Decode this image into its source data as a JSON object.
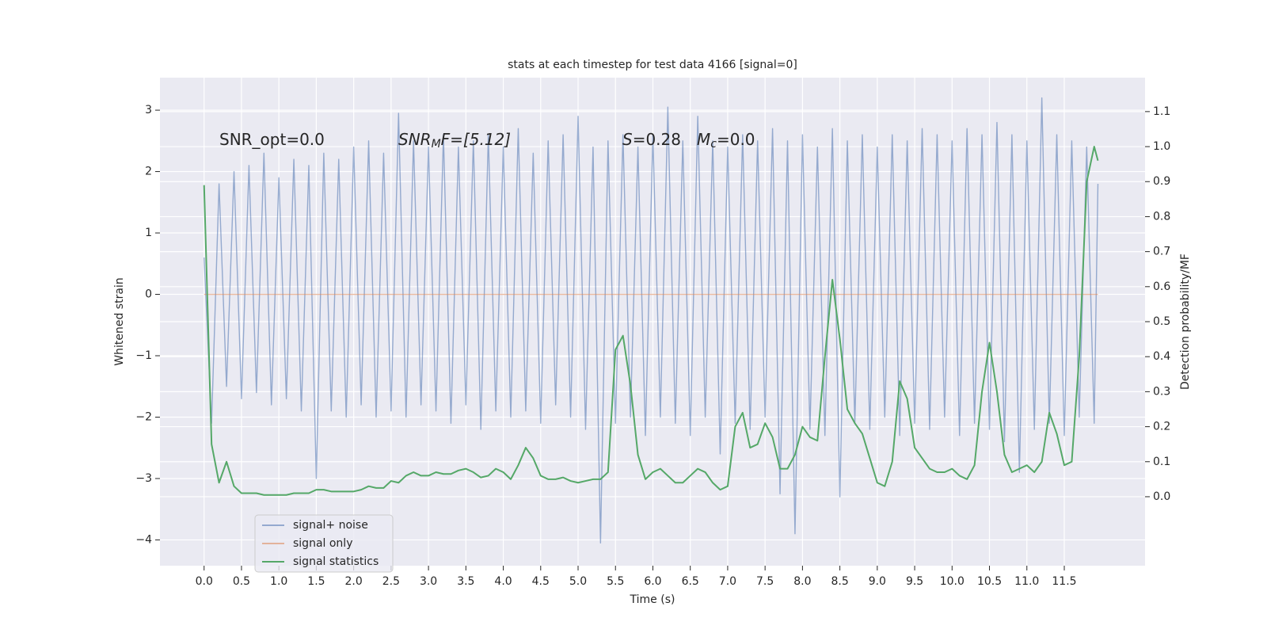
{
  "chart_data": {
    "type": "line",
    "title": "stats at each timestep for test data 4166 [signal=0]",
    "x_label": "Time (s)",
    "y_label": "Whitened strain",
    "y2_label": "Detection probability/MF",
    "annotations": [
      {
        "base": "SNR_opt=0.0"
      },
      {
        "base": "SNR",
        "sub": "M",
        "rest": "F=[5.12]"
      },
      {
        "base": "S",
        "rest": "=0.28"
      },
      {
        "base": "M",
        "sub": "c",
        "rest": "=0.0"
      }
    ],
    "xlim": [
      -0.59,
      12.58
    ],
    "ylim": [
      -4.42,
      3.53
    ],
    "y2lim": [
      -0.197,
      1.197
    ],
    "xticks": [
      {
        "value": 0,
        "label": "0.0"
      },
      0.5,
      {
        "value": 1,
        "label": "1.0"
      },
      1.5,
      {
        "value": 2,
        "label": "2.0"
      },
      2.5,
      {
        "value": 3,
        "label": "3.0"
      },
      3.5,
      {
        "value": 4,
        "label": "4.0"
      },
      4.5,
      {
        "value": 5,
        "label": "5.0"
      },
      5.5,
      {
        "value": 6,
        "label": "6.0"
      },
      6.5,
      {
        "value": 7,
        "label": "7.0"
      },
      7.5,
      {
        "value": 8,
        "label": "8.0"
      },
      8.5,
      {
        "value": 9,
        "label": "9.0"
      },
      9.5,
      {
        "value": 10,
        "label": "10.0"
      },
      10.5,
      {
        "value": 11,
        "label": "11.0"
      },
      11.5
    ],
    "yticks": [
      {
        "value": -4,
        "label": "−4"
      },
      {
        "value": -3,
        "label": "−3"
      },
      {
        "value": -2,
        "label": "−2"
      },
      {
        "value": -1,
        "label": "−1"
      },
      0,
      1,
      2,
      3
    ],
    "y2ticks": [
      {
        "value": 0,
        "label": "0.0"
      },
      0.1,
      0.2,
      0.3,
      0.4,
      0.5,
      0.6,
      0.7,
      0.8,
      0.9,
      {
        "value": 1,
        "label": "1.0"
      },
      1.1
    ],
    "grid": true,
    "legend": "lower left",
    "series": [
      {
        "name": "signal+ noise",
        "color": "#4c72b0",
        "x": [
          0,
          0.1,
          0.2,
          0.3,
          0.4,
          0.5,
          0.6,
          0.7,
          0.8,
          0.9,
          1,
          1.1,
          1.2,
          1.3,
          1.4,
          1.5,
          1.6,
          1.7,
          1.8,
          1.9,
          2,
          2.1,
          2.2,
          2.3,
          2.4,
          2.5,
          2.6,
          2.7,
          2.8,
          2.9,
          3,
          3.1,
          3.2,
          3.3,
          3.4,
          3.5,
          3.6,
          3.7,
          3.8,
          3.9,
          4,
          4.1,
          4.2,
          4.3,
          4.4,
          4.5,
          4.6,
          4.7,
          4.8,
          4.9,
          5,
          5.1,
          5.2,
          5.3,
          5.4,
          5.5,
          5.6,
          5.7,
          5.8,
          5.9,
          6,
          6.1,
          6.2,
          6.3,
          6.4,
          6.5,
          6.6,
          6.7,
          6.8,
          6.9,
          7,
          7.1,
          7.2,
          7.3,
          7.4,
          7.5,
          7.6,
          7.7,
          7.8,
          7.9,
          8,
          8.1,
          8.2,
          8.3,
          8.4,
          8.5,
          8.6,
          8.7,
          8.8,
          8.9,
          9,
          9.1,
          9.2,
          9.3,
          9.4,
          9.5,
          9.6,
          9.7,
          9.8,
          9.9,
          10,
          10.1,
          10.2,
          10.3,
          10.4,
          10.5,
          10.6,
          10.7,
          10.8,
          10.9,
          11,
          11.1,
          11.2,
          11.3,
          11.4,
          11.5,
          11.6,
          11.7,
          11.8,
          11.9,
          11.95
        ],
        "values": [
          0.6,
          -2.1,
          1.8,
          -1.5,
          2.0,
          -1.7,
          2.1,
          -1.6,
          2.3,
          -1.8,
          1.9,
          -1.7,
          2.2,
          -1.9,
          2.1,
          -3.0,
          2.3,
          -1.9,
          2.2,
          -2.0,
          2.4,
          -1.8,
          2.5,
          -2.0,
          2.3,
          -1.9,
          2.95,
          -2.0,
          2.5,
          -1.8,
          2.4,
          -1.9,
          2.6,
          -2.1,
          2.4,
          -1.8,
          2.5,
          -2.2,
          2.6,
          -1.9,
          2.4,
          -2.0,
          2.7,
          -1.9,
          2.3,
          -2.1,
          2.5,
          -1.8,
          2.6,
          -2.0,
          2.9,
          -2.2,
          2.4,
          -4.05,
          2.5,
          -2.1,
          2.6,
          -2.0,
          2.4,
          -2.3,
          2.6,
          -2.0,
          3.05,
          -2.1,
          2.5,
          -2.3,
          2.9,
          -2.0,
          2.5,
          -2.6,
          2.4,
          -2.1,
          2.6,
          -2.2,
          2.5,
          -2.0,
          2.7,
          -3.25,
          2.5,
          -3.9,
          2.6,
          -2.2,
          2.4,
          -2.3,
          2.7,
          -3.3,
          2.5,
          -2.1,
          2.6,
          -2.2,
          2.4,
          -2.0,
          2.6,
          -2.3,
          2.5,
          -2.1,
          2.7,
          -2.2,
          2.6,
          -2.0,
          2.5,
          -2.3,
          2.7,
          -2.1,
          2.6,
          -2.2,
          2.8,
          -2.4,
          2.6,
          -2.9,
          2.5,
          -2.2,
          3.2,
          -2.1,
          2.6,
          -2.3,
          2.5,
          -2.0,
          2.4,
          -2.1,
          1.8
        ]
      },
      {
        "name": "signal only",
        "color": "#dd8452",
        "x": [
          0,
          11.95
        ],
        "values": [
          0,
          0
        ]
      },
      {
        "name": "signal statistics",
        "color": "#55a868",
        "axis": "y2",
        "x": [
          0,
          0.1,
          0.2,
          0.3,
          0.4,
          0.5,
          0.6,
          0.7,
          0.8,
          0.9,
          1,
          1.1,
          1.2,
          1.3,
          1.4,
          1.5,
          1.6,
          1.7,
          1.8,
          1.9,
          2,
          2.1,
          2.2,
          2.3,
          2.4,
          2.5,
          2.6,
          2.7,
          2.8,
          2.9,
          3,
          3.1,
          3.2,
          3.3,
          3.4,
          3.5,
          3.6,
          3.7,
          3.8,
          3.9,
          4,
          4.1,
          4.2,
          4.3,
          4.4,
          4.5,
          4.6,
          4.7,
          4.8,
          4.9,
          5,
          5.1,
          5.2,
          5.3,
          5.4,
          5.5,
          5.6,
          5.7,
          5.8,
          5.9,
          6,
          6.1,
          6.2,
          6.3,
          6.4,
          6.5,
          6.6,
          6.7,
          6.8,
          6.9,
          7,
          7.1,
          7.2,
          7.3,
          7.4,
          7.5,
          7.6,
          7.7,
          7.8,
          7.9,
          8,
          8.1,
          8.2,
          8.3,
          8.4,
          8.5,
          8.6,
          8.7,
          8.8,
          8.9,
          9,
          9.1,
          9.2,
          9.3,
          9.4,
          9.5,
          9.6,
          9.7,
          9.8,
          9.9,
          10,
          10.1,
          10.2,
          10.3,
          10.4,
          10.5,
          10.6,
          10.7,
          10.8,
          10.9,
          11,
          11.1,
          11.2,
          11.3,
          11.4,
          11.5,
          11.6,
          11.7,
          11.8,
          11.9,
          11.95
        ],
        "values": [
          0.89,
          0.15,
          0.04,
          0.1,
          0.03,
          0.01,
          0.01,
          0.01,
          0.005,
          0.005,
          0.005,
          0.005,
          0.01,
          0.01,
          0.01,
          0.02,
          0.02,
          0.015,
          0.015,
          0.015,
          0.015,
          0.02,
          0.03,
          0.025,
          0.025,
          0.045,
          0.04,
          0.06,
          0.07,
          0.06,
          0.06,
          0.07,
          0.065,
          0.065,
          0.075,
          0.08,
          0.07,
          0.055,
          0.06,
          0.08,
          0.07,
          0.05,
          0.09,
          0.14,
          0.11,
          0.06,
          0.05,
          0.05,
          0.055,
          0.045,
          0.04,
          0.045,
          0.05,
          0.05,
          0.07,
          0.42,
          0.46,
          0.32,
          0.12,
          0.05,
          0.07,
          0.08,
          0.06,
          0.04,
          0.04,
          0.06,
          0.08,
          0.07,
          0.04,
          0.02,
          0.03,
          0.2,
          0.24,
          0.14,
          0.15,
          0.21,
          0.17,
          0.08,
          0.08,
          0.12,
          0.2,
          0.17,
          0.16,
          0.4,
          0.62,
          0.45,
          0.25,
          0.21,
          0.18,
          0.11,
          0.04,
          0.03,
          0.1,
          0.33,
          0.28,
          0.14,
          0.11,
          0.08,
          0.07,
          0.07,
          0.08,
          0.06,
          0.05,
          0.09,
          0.3,
          0.44,
          0.3,
          0.12,
          0.07,
          0.08,
          0.09,
          0.07,
          0.1,
          0.24,
          0.18,
          0.09,
          0.1,
          0.4,
          0.9,
          1.0,
          0.96
        ]
      }
    ]
  }
}
